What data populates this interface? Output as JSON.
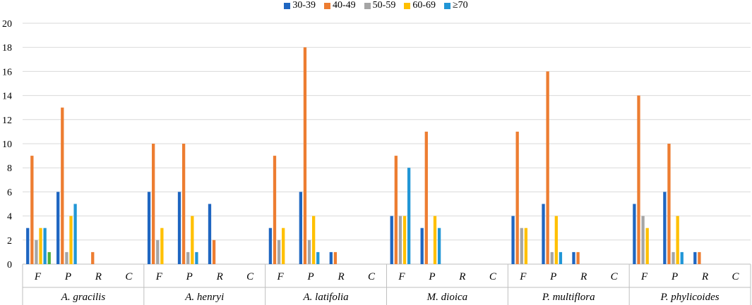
{
  "chart_data": {
    "type": "bar",
    "title": "",
    "xlabel": "",
    "ylabel": "",
    "ylim": [
      0,
      20
    ],
    "yticks": [
      0,
      2,
      4,
      6,
      8,
      10,
      12,
      14,
      16,
      18,
      20
    ],
    "legend_position": "top-center",
    "legend": [
      {
        "name": "30-39",
        "color": "#1f66c1"
      },
      {
        "name": "40-49",
        "color": "#ed7d31"
      },
      {
        "name": "50-59",
        "color": "#a5a5a5"
      },
      {
        "name": "60-69",
        "color": "#ffc000"
      },
      {
        "name": "≥70",
        "color": "#2196d6"
      }
    ],
    "extra_color": "#4caf3d",
    "groups": [
      {
        "name": "A. gracilis",
        "subcategories": [
          {
            "label": "F",
            "values": [
              3,
              9,
              2,
              3,
              3,
              1
            ]
          },
          {
            "label": "P",
            "values": [
              6,
              13,
              1,
              4,
              5
            ]
          },
          {
            "label": "R",
            "values": [
              0,
              1,
              0,
              0,
              0
            ]
          },
          {
            "label": "C",
            "values": [
              0,
              0,
              0,
              0,
              0
            ]
          }
        ]
      },
      {
        "name": "A. henryi",
        "subcategories": [
          {
            "label": "F",
            "values": [
              6,
              10,
              2,
              3,
              0
            ]
          },
          {
            "label": "P",
            "values": [
              6,
              10,
              1,
              4,
              1
            ]
          },
          {
            "label": "R",
            "values": [
              5,
              2,
              0,
              0,
              0
            ]
          },
          {
            "label": "C",
            "values": [
              0,
              0,
              0,
              0,
              0
            ]
          }
        ]
      },
      {
        "name": "A. latifolia",
        "subcategories": [
          {
            "label": "F",
            "values": [
              3,
              9,
              2,
              3,
              0
            ]
          },
          {
            "label": "P",
            "values": [
              6,
              18,
              2,
              4,
              1
            ]
          },
          {
            "label": "R",
            "values": [
              1,
              1,
              0,
              0,
              0
            ]
          },
          {
            "label": "C",
            "values": [
              0,
              0,
              0,
              0,
              0
            ]
          }
        ]
      },
      {
        "name": "M. dioica",
        "subcategories": [
          {
            "label": "F",
            "values": [
              4,
              9,
              4,
              4,
              8
            ]
          },
          {
            "label": "P",
            "values": [
              3,
              11,
              0,
              4,
              3
            ]
          },
          {
            "label": "R",
            "values": [
              0,
              0,
              0,
              0,
              0
            ]
          },
          {
            "label": "C",
            "values": [
              0,
              0,
              0,
              0,
              0
            ]
          }
        ]
      },
      {
        "name": "P. multiflora",
        "subcategories": [
          {
            "label": "F",
            "values": [
              4,
              11,
              3,
              3,
              0
            ]
          },
          {
            "label": "P",
            "values": [
              5,
              16,
              1,
              4,
              1
            ]
          },
          {
            "label": "R",
            "values": [
              1,
              1,
              0,
              0,
              0
            ]
          },
          {
            "label": "C",
            "values": [
              0,
              0,
              0,
              0,
              0
            ]
          }
        ]
      },
      {
        "name": "P. phylicoides",
        "subcategories": [
          {
            "label": "F",
            "values": [
              5,
              14,
              4,
              3,
              0
            ]
          },
          {
            "label": "P",
            "values": [
              6,
              10,
              1,
              4,
              1
            ]
          },
          {
            "label": "R",
            "values": [
              1,
              1,
              0,
              0,
              0
            ]
          },
          {
            "label": "C",
            "values": [
              0,
              0,
              0,
              0,
              0
            ]
          }
        ]
      }
    ]
  }
}
